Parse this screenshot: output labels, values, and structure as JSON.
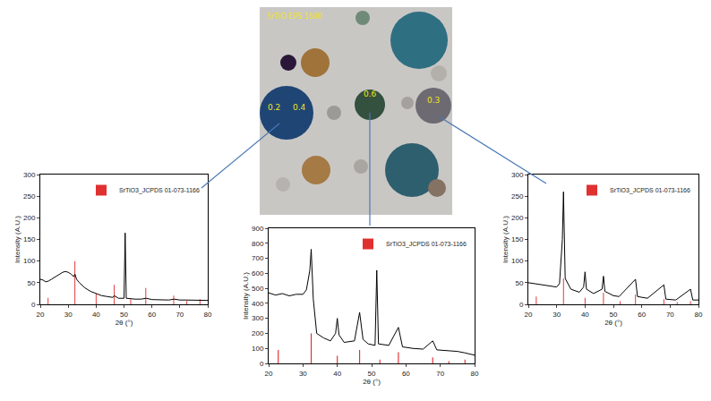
{
  "chart_data": [
    {
      "type": "line",
      "xlabel": "2θ (°)",
      "ylabel": "Intensity (A.U.)",
      "xlim": [
        20,
        80
      ],
      "xticks": [
        20,
        30,
        40,
        50,
        60,
        70,
        80
      ],
      "ylim": [
        0,
        300
      ],
      "yticks": [
        0,
        50,
        100,
        150,
        200,
        250,
        300
      ],
      "legend": "upper right",
      "series": [
        {
          "type": "line",
          "color": "#000000",
          "x": [
            20,
            21,
            22,
            23,
            24,
            25,
            26,
            27,
            28,
            29,
            30,
            31,
            32,
            32.4,
            33,
            34,
            35,
            36,
            38,
            40,
            42,
            44,
            46,
            46.5,
            48,
            50,
            50.4,
            50.8,
            52,
            54,
            56,
            58,
            60,
            62,
            64,
            66,
            68,
            70,
            72,
            74,
            76,
            78,
            80
          ],
          "values": [
            58,
            56,
            52,
            54,
            58,
            62,
            66,
            70,
            74,
            76,
            74,
            70,
            64,
            70,
            58,
            50,
            44,
            38,
            30,
            25,
            20,
            18,
            16,
            20,
            14,
            14,
            165,
            14,
            13,
            12,
            12,
            14,
            11,
            11,
            10,
            10,
            12,
            10,
            10,
            10,
            9,
            9,
            9
          ]
        },
        {
          "type": "bar",
          "name": "SrTiO3_JCPDS 01-073-1166",
          "color": "#e03030",
          "x": [
            22.8,
            32.4,
            40.0,
            46.5,
            52.4,
            57.8,
            67.8,
            72.5,
            77.2
          ],
          "values": [
            15,
            100,
            25,
            45,
            12,
            38,
            20,
            8,
            12
          ]
        }
      ]
    },
    {
      "type": "line",
      "xlabel": "2θ (°)",
      "ylabel": "Intensity (A.U.)",
      "xlim": [
        20,
        80
      ],
      "xticks": [
        20,
        30,
        40,
        50,
        60,
        70,
        80
      ],
      "ylim": [
        0,
        900
      ],
      "yticks": [
        0,
        100,
        200,
        300,
        400,
        500,
        600,
        700,
        800,
        900
      ],
      "legend": "upper right",
      "series": [
        {
          "type": "line",
          "color": "#000000",
          "x": [
            20,
            22,
            24,
            26,
            28,
            30,
            31,
            32,
            32.4,
            33,
            34,
            36,
            38,
            39.5,
            40,
            40.5,
            42,
            45,
            46.5,
            47.5,
            49,
            51,
            51.5,
            52,
            55,
            57.8,
            59,
            62,
            65,
            67.8,
            69,
            72,
            75,
            77.2,
            79,
            80
          ],
          "values": [
            470,
            455,
            465,
            450,
            460,
            460,
            490,
            620,
            760,
            430,
            200,
            170,
            150,
            200,
            300,
            190,
            140,
            150,
            340,
            160,
            130,
            120,
            620,
            130,
            120,
            240,
            110,
            100,
            95,
            150,
            90,
            85,
            80,
            70,
            60,
            55
          ]
        },
        {
          "type": "bar",
          "name": "SrTiO3_JCPDS 01-073-1166",
          "color": "#e03030",
          "x": [
            22.8,
            32.4,
            40.0,
            46.5,
            52.4,
            57.8,
            67.8,
            72.5,
            77.2
          ],
          "values": [
            90,
            200,
            50,
            90,
            25,
            75,
            40,
            15,
            25
          ]
        }
      ]
    },
    {
      "type": "line",
      "xlabel": "2θ (°)",
      "ylabel": "Intensity (A.U.)",
      "xlim": [
        20,
        80
      ],
      "xticks": [
        20,
        30,
        40,
        50,
        60,
        70,
        80
      ],
      "ylim": [
        0,
        300
      ],
      "yticks": [
        0,
        50,
        100,
        150,
        200,
        250,
        300
      ],
      "legend": "upper right",
      "series": [
        {
          "type": "line",
          "color": "#000000",
          "x": [
            20,
            25,
            30,
            31,
            32,
            32.4,
            33,
            35,
            38,
            39.5,
            40,
            40.5,
            43,
            46,
            46.5,
            47,
            50,
            52,
            57.8,
            58.5,
            62,
            67.8,
            68.5,
            72,
            77.2,
            78,
            80
          ],
          "values": [
            50,
            45,
            40,
            48,
            150,
            260,
            60,
            35,
            28,
            40,
            75,
            35,
            25,
            35,
            65,
            30,
            20,
            18,
            58,
            18,
            14,
            45,
            12,
            10,
            35,
            10,
            10
          ]
        },
        {
          "type": "bar",
          "name": "SrTiO3_JCPDS 01-073-1166",
          "color": "#e03030",
          "x": [
            22.8,
            32.4,
            40.0,
            46.5,
            52.4,
            57.8,
            67.8,
            72.5,
            77.2
          ],
          "values": [
            18,
            60,
            15,
            27,
            7,
            23,
            12,
            5,
            7
          ]
        }
      ]
    }
  ],
  "photo": {
    "title": "SrTiO EPS 1600",
    "labels": [
      "0.2",
      "0.4",
      "0.6",
      "0.3"
    ]
  }
}
